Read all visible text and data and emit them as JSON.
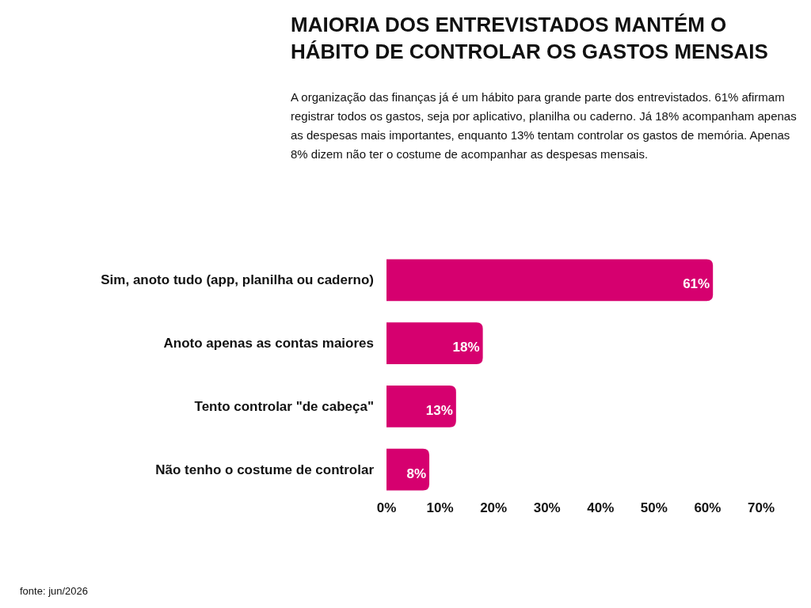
{
  "chart_data": {
    "type": "bar",
    "orientation": "horizontal",
    "title": "MAIORIA DOS ENTREVISTADOS MANTÉM O HÁBITO DE CONTROLAR OS GASTOS MENSAIS",
    "subtitle": "A organização das finanças já é um hábito para grande parte dos entrevistados. 61% afirmam registrar todos os gastos, seja por aplicativo, planilha ou caderno. Já 18% acompanham apenas as despesas mais importantes, enquanto 13% tentam controlar os gastos de memória. Apenas 8% dizem não ter o costume de acompanhar as despesas mensais.",
    "categories": [
      "Sim, anoto tudo (app, planilha ou caderno)",
      "Anoto apenas as contas maiores",
      "Tento controlar \"de cabeça\"",
      "Não tenho o costume de controlar"
    ],
    "values": [
      61,
      18,
      13,
      8
    ],
    "value_labels": [
      "61%",
      "18%",
      "13%",
      "8%"
    ],
    "color": "#d6006f",
    "xlim": [
      0,
      70
    ],
    "xticks": [
      {
        "value": 0,
        "label": "0%"
      },
      {
        "value": 10,
        "label": "10%"
      },
      {
        "value": 20,
        "label": "20%"
      },
      {
        "value": 30,
        "label": "30%"
      },
      {
        "value": 40,
        "label": "40%"
      },
      {
        "value": 50,
        "label": "50%"
      },
      {
        "value": 60,
        "label": "60%"
      },
      {
        "value": 70,
        "label": "70%"
      }
    ],
    "annotations": [
      "fonte: jun/2026"
    ]
  }
}
